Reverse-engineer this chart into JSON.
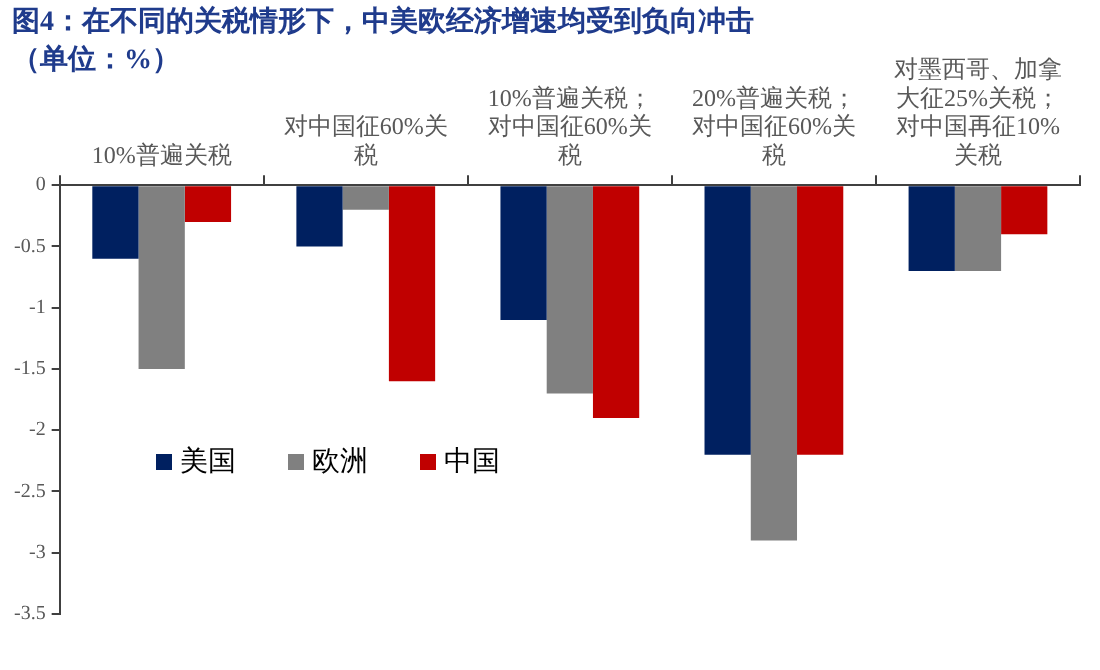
{
  "chart_data": {
    "type": "bar",
    "title": "图4：在不同的关税情形下，中美欧经济增速均受到负向冲击",
    "subtitle": "（单位：%）",
    "categories": [
      "10%普遍关税",
      "对中国征60%关税",
      "10%普遍关税；对中国征60%关税",
      "20%普遍关税；对中国征60%关税",
      "对墨西哥、加拿大征25%关税；对中国再征10%关税"
    ],
    "series": [
      {
        "name": "美国",
        "color": "#002060",
        "values": [
          -0.6,
          -0.5,
          -1.1,
          -2.2,
          -0.7
        ]
      },
      {
        "name": "欧洲",
        "color": "#808080",
        "values": [
          -1.5,
          -0.2,
          -1.7,
          -2.9,
          -0.7
        ]
      },
      {
        "name": "中国",
        "color": "#c00000",
        "values": [
          -0.3,
          -1.6,
          -1.9,
          -2.2,
          -0.4
        ]
      }
    ],
    "ylim": [
      -3.5,
      0
    ],
    "yticks": [
      0,
      -0.5,
      -1,
      -1.5,
      -2,
      -2.5,
      -3,
      -3.5
    ],
    "grid": false,
    "legend": "left"
  }
}
